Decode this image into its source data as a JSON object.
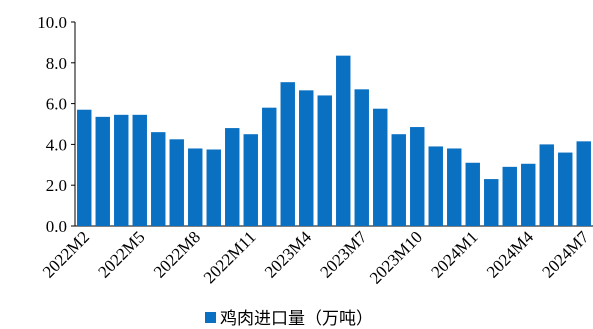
{
  "chart_data": {
    "type": "bar",
    "categories": [
      "2022M2",
      null,
      null,
      "2022M5",
      null,
      null,
      "2022M8",
      null,
      null,
      "2022M11",
      null,
      null,
      "2023M4",
      null,
      null,
      "2023M7",
      null,
      null,
      "2023M10",
      null,
      null,
      "2024M1",
      null,
      null,
      "2024M4",
      null,
      null,
      "2024M7"
    ],
    "series": [
      {
        "name": "鸡肉进口量（万吨）",
        "color": "#0a70c2",
        "values": [
          5.7,
          5.35,
          5.45,
          5.45,
          4.6,
          4.25,
          3.8,
          3.75,
          4.8,
          4.5,
          5.8,
          7.05,
          6.65,
          6.4,
          8.35,
          6.7,
          5.75,
          4.5,
          4.85,
          3.9,
          3.8,
          3.1,
          2.3,
          2.9,
          3.05,
          4.0,
          3.6,
          4.15
        ]
      }
    ],
    "ylim": [
      0,
      10
    ],
    "yticks": [
      {
        "value": 0,
        "label": "0.0"
      },
      {
        "value": 2,
        "label": "2.0"
      },
      {
        "value": 4,
        "label": "4.0"
      },
      {
        "value": 6,
        "label": "6.0"
      },
      {
        "value": 8,
        "label": "8.0"
      },
      {
        "value": 10,
        "label": "10.0"
      }
    ],
    "legend": "bottom"
  }
}
